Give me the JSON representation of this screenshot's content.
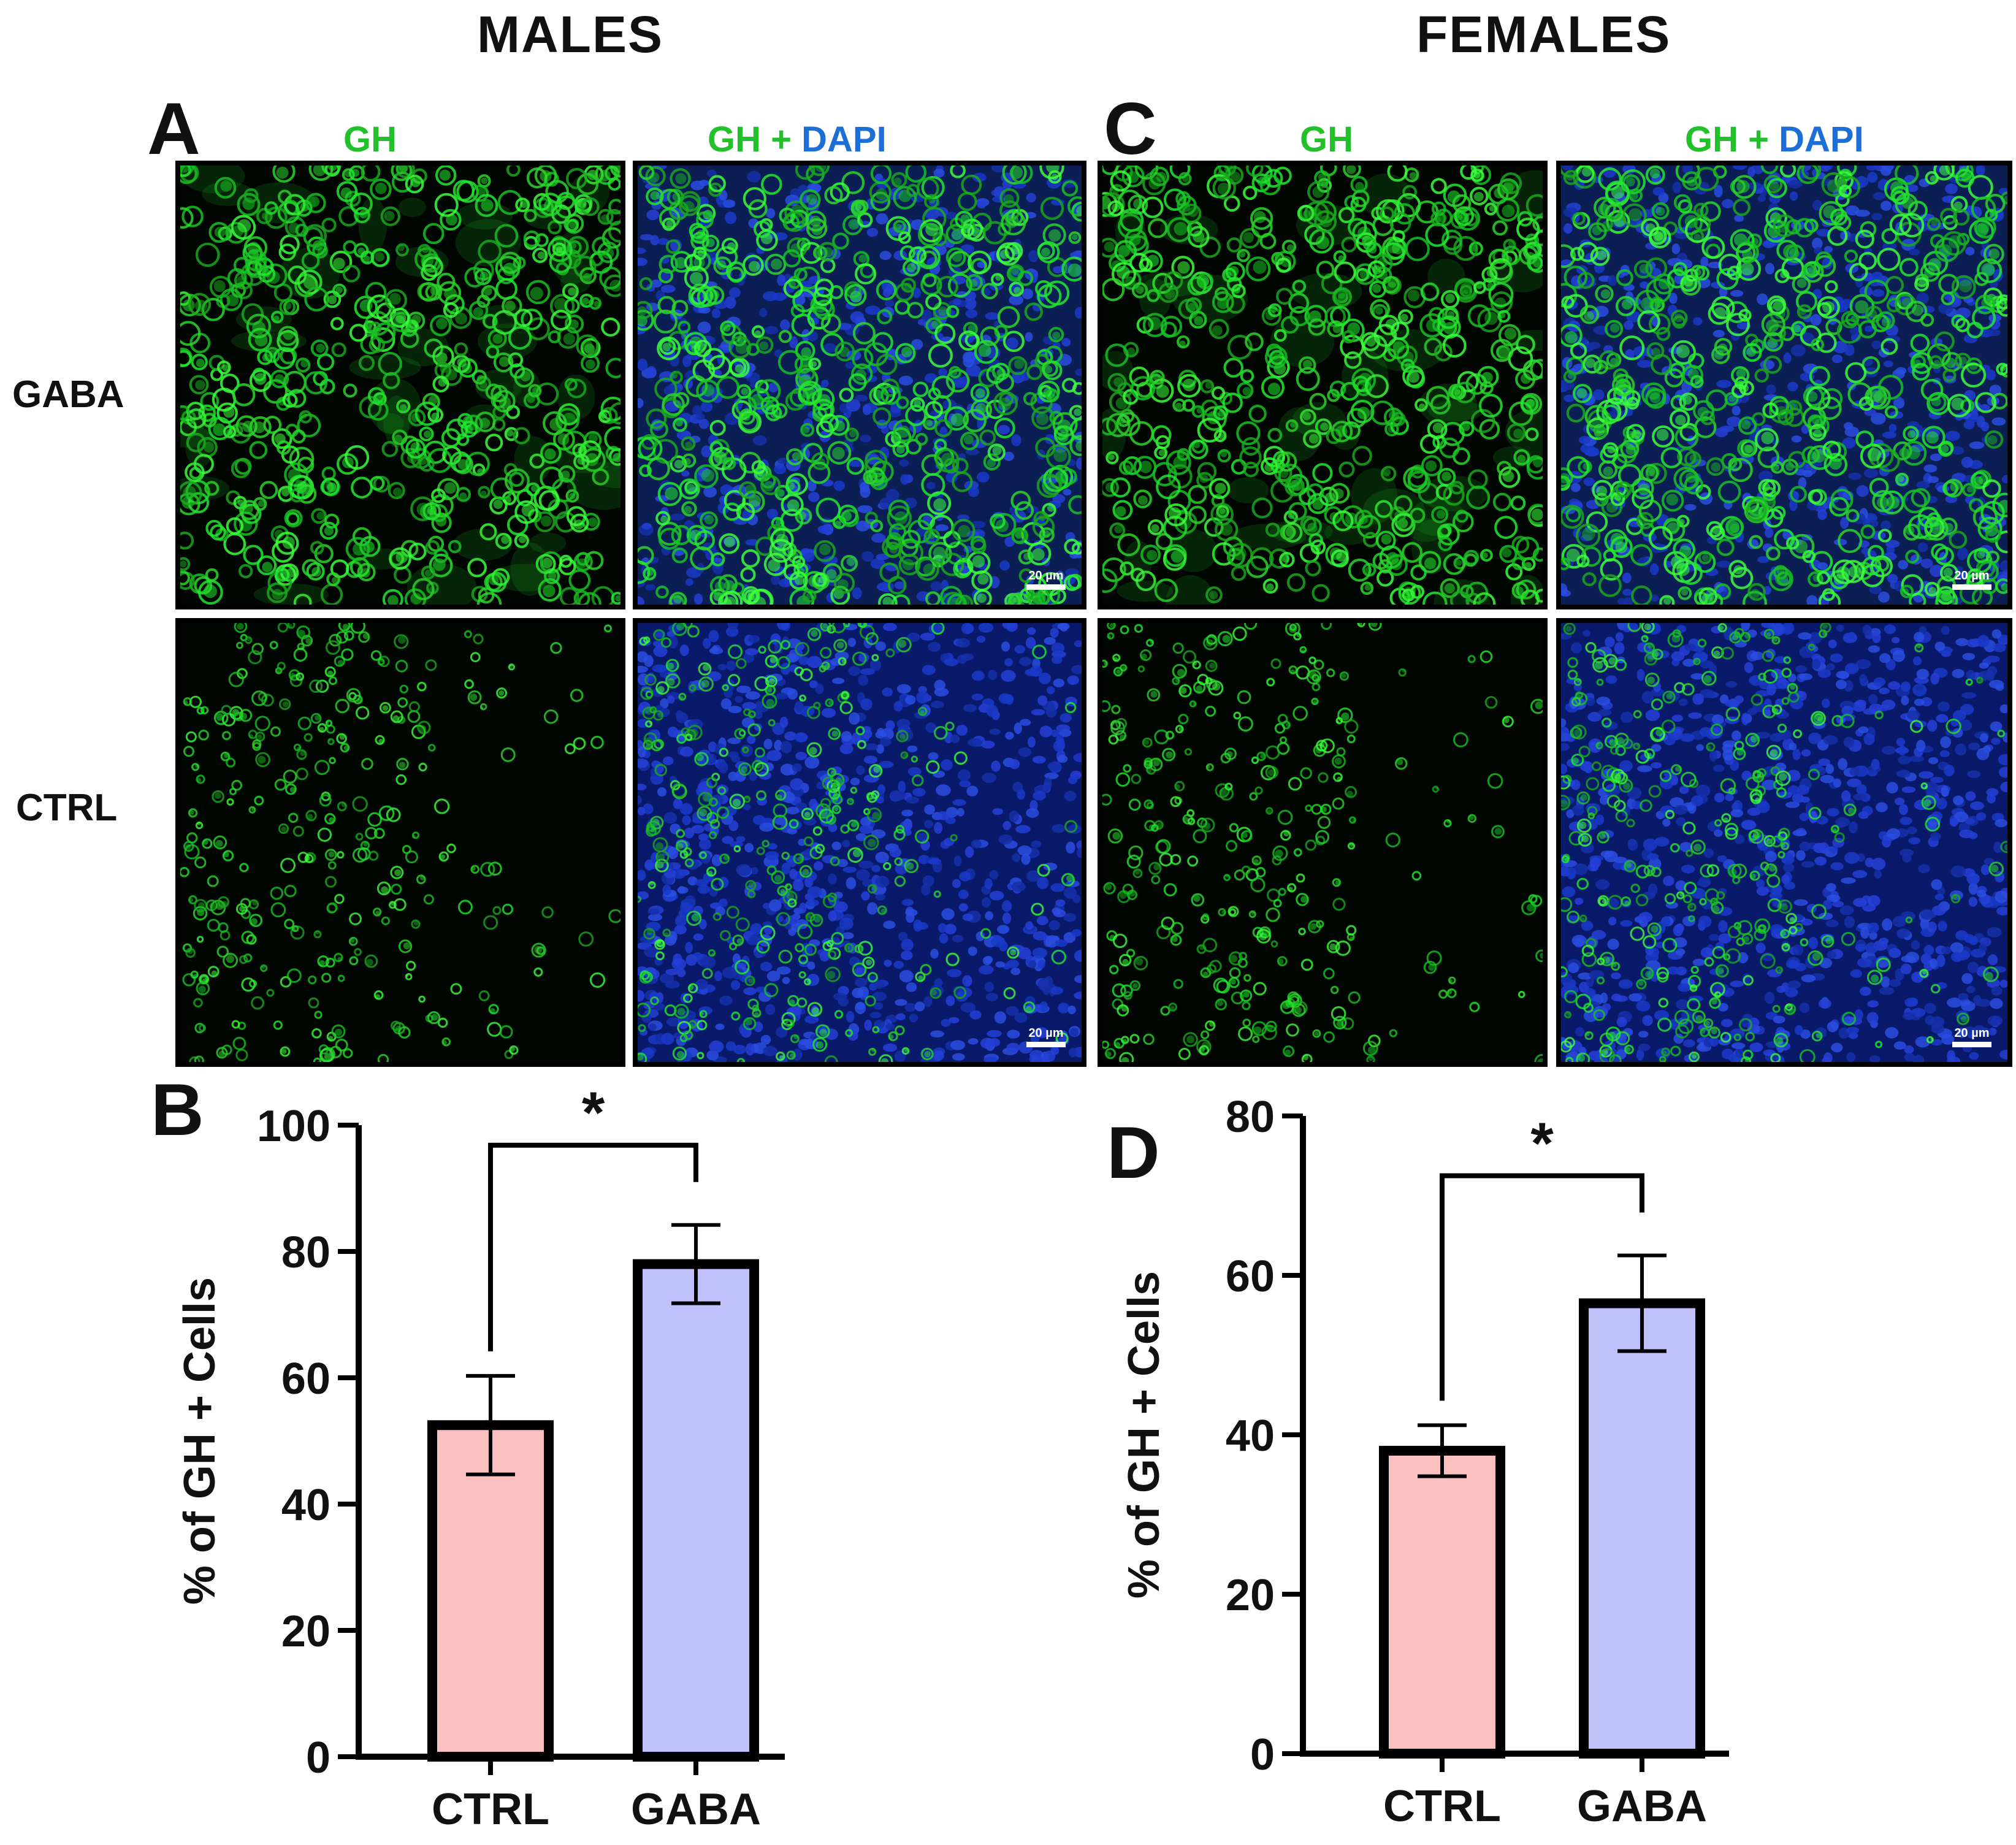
{
  "headers": {
    "males": "MALES",
    "females": "FEMALES"
  },
  "panels": {
    "a": "A",
    "b": "B",
    "c": "C",
    "d": "D"
  },
  "rows": {
    "gaba": "GABA",
    "ctrl": "CTRL"
  },
  "channels": {
    "gh": "GH",
    "plus": " + ",
    "dapi": "DAPI"
  },
  "scale_bar": "20 µm",
  "colors": {
    "gh_green": "#22c02a",
    "dapi_blue": "#1c6fd6",
    "ctrl_bar": "#fbc0c0",
    "gaba_bar": "#c0c0fb"
  },
  "chart_data": [
    {
      "panel": "B",
      "type": "bar",
      "categories": [
        "CTRL",
        "GABA"
      ],
      "values": [
        52.5,
        78
      ],
      "errors": [
        7.8,
        6.2
      ],
      "ylabel": "% of GH + Cells",
      "ylim": [
        0,
        100
      ],
      "yticks": [
        0,
        20,
        40,
        60,
        80,
        100
      ],
      "significance": "*",
      "bar_colors": [
        "#fbc0c0",
        "#c0c0fb"
      ]
    },
    {
      "panel": "D",
      "type": "bar",
      "categories": [
        "CTRL",
        "GABA"
      ],
      "values": [
        38,
        56.5
      ],
      "errors": [
        3.2,
        6.0
      ],
      "ylabel": "% of GH + Cells",
      "ylim": [
        0,
        80
      ],
      "yticks": [
        0,
        20,
        40,
        60,
        80
      ],
      "significance": "*",
      "bar_colors": [
        "#fbc0c0",
        "#c0c0fb"
      ]
    }
  ]
}
